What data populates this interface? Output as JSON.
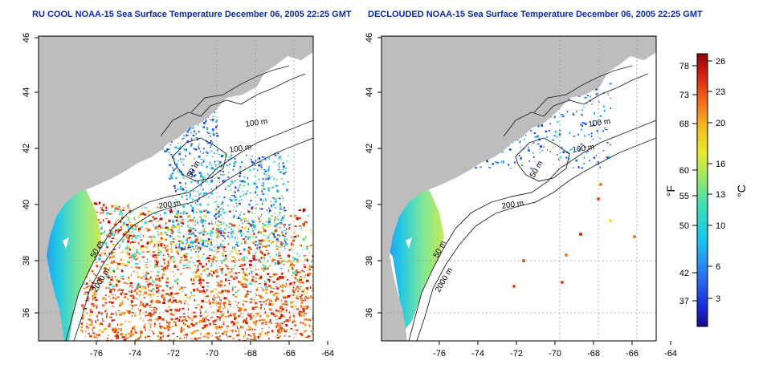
{
  "panels": [
    {
      "title": "RU COOL NOAA-15 Sea Surface Temperature December 06, 2005 22:25 GMT",
      "variant": "raw"
    },
    {
      "title": "DECLOUDED NOAA-15 Sea Surface Temperature December 06, 2005 22:25 GMT",
      "variant": "declouded"
    }
  ],
  "axes": {
    "lon_ticks": [
      "-76",
      "-74",
      "-72",
      "-70",
      "-68",
      "-66",
      "-64"
    ],
    "lat_ticks": [
      "36",
      "38",
      "40",
      "42",
      "44",
      "46"
    ]
  },
  "contour_labels": {
    "c100a": "100 m",
    "c100b": "100 m",
    "c50": "50 m",
    "c200": "200 m",
    "c50b": "50 m",
    "c2000": "2000 m"
  },
  "colorbar": {
    "unit_f": "°F",
    "unit_c": "°C",
    "f_ticks": [
      "78",
      "73",
      "68",
      "60",
      "55",
      "50",
      "42",
      "37"
    ],
    "c_ticks": [
      "26",
      "23",
      "20",
      "16",
      "13",
      "10",
      "6",
      "3"
    ]
  },
  "colors": {
    "land": "#bdbdbd",
    "title": "#0b2aa8",
    "grid": "#9a9a9a"
  }
}
